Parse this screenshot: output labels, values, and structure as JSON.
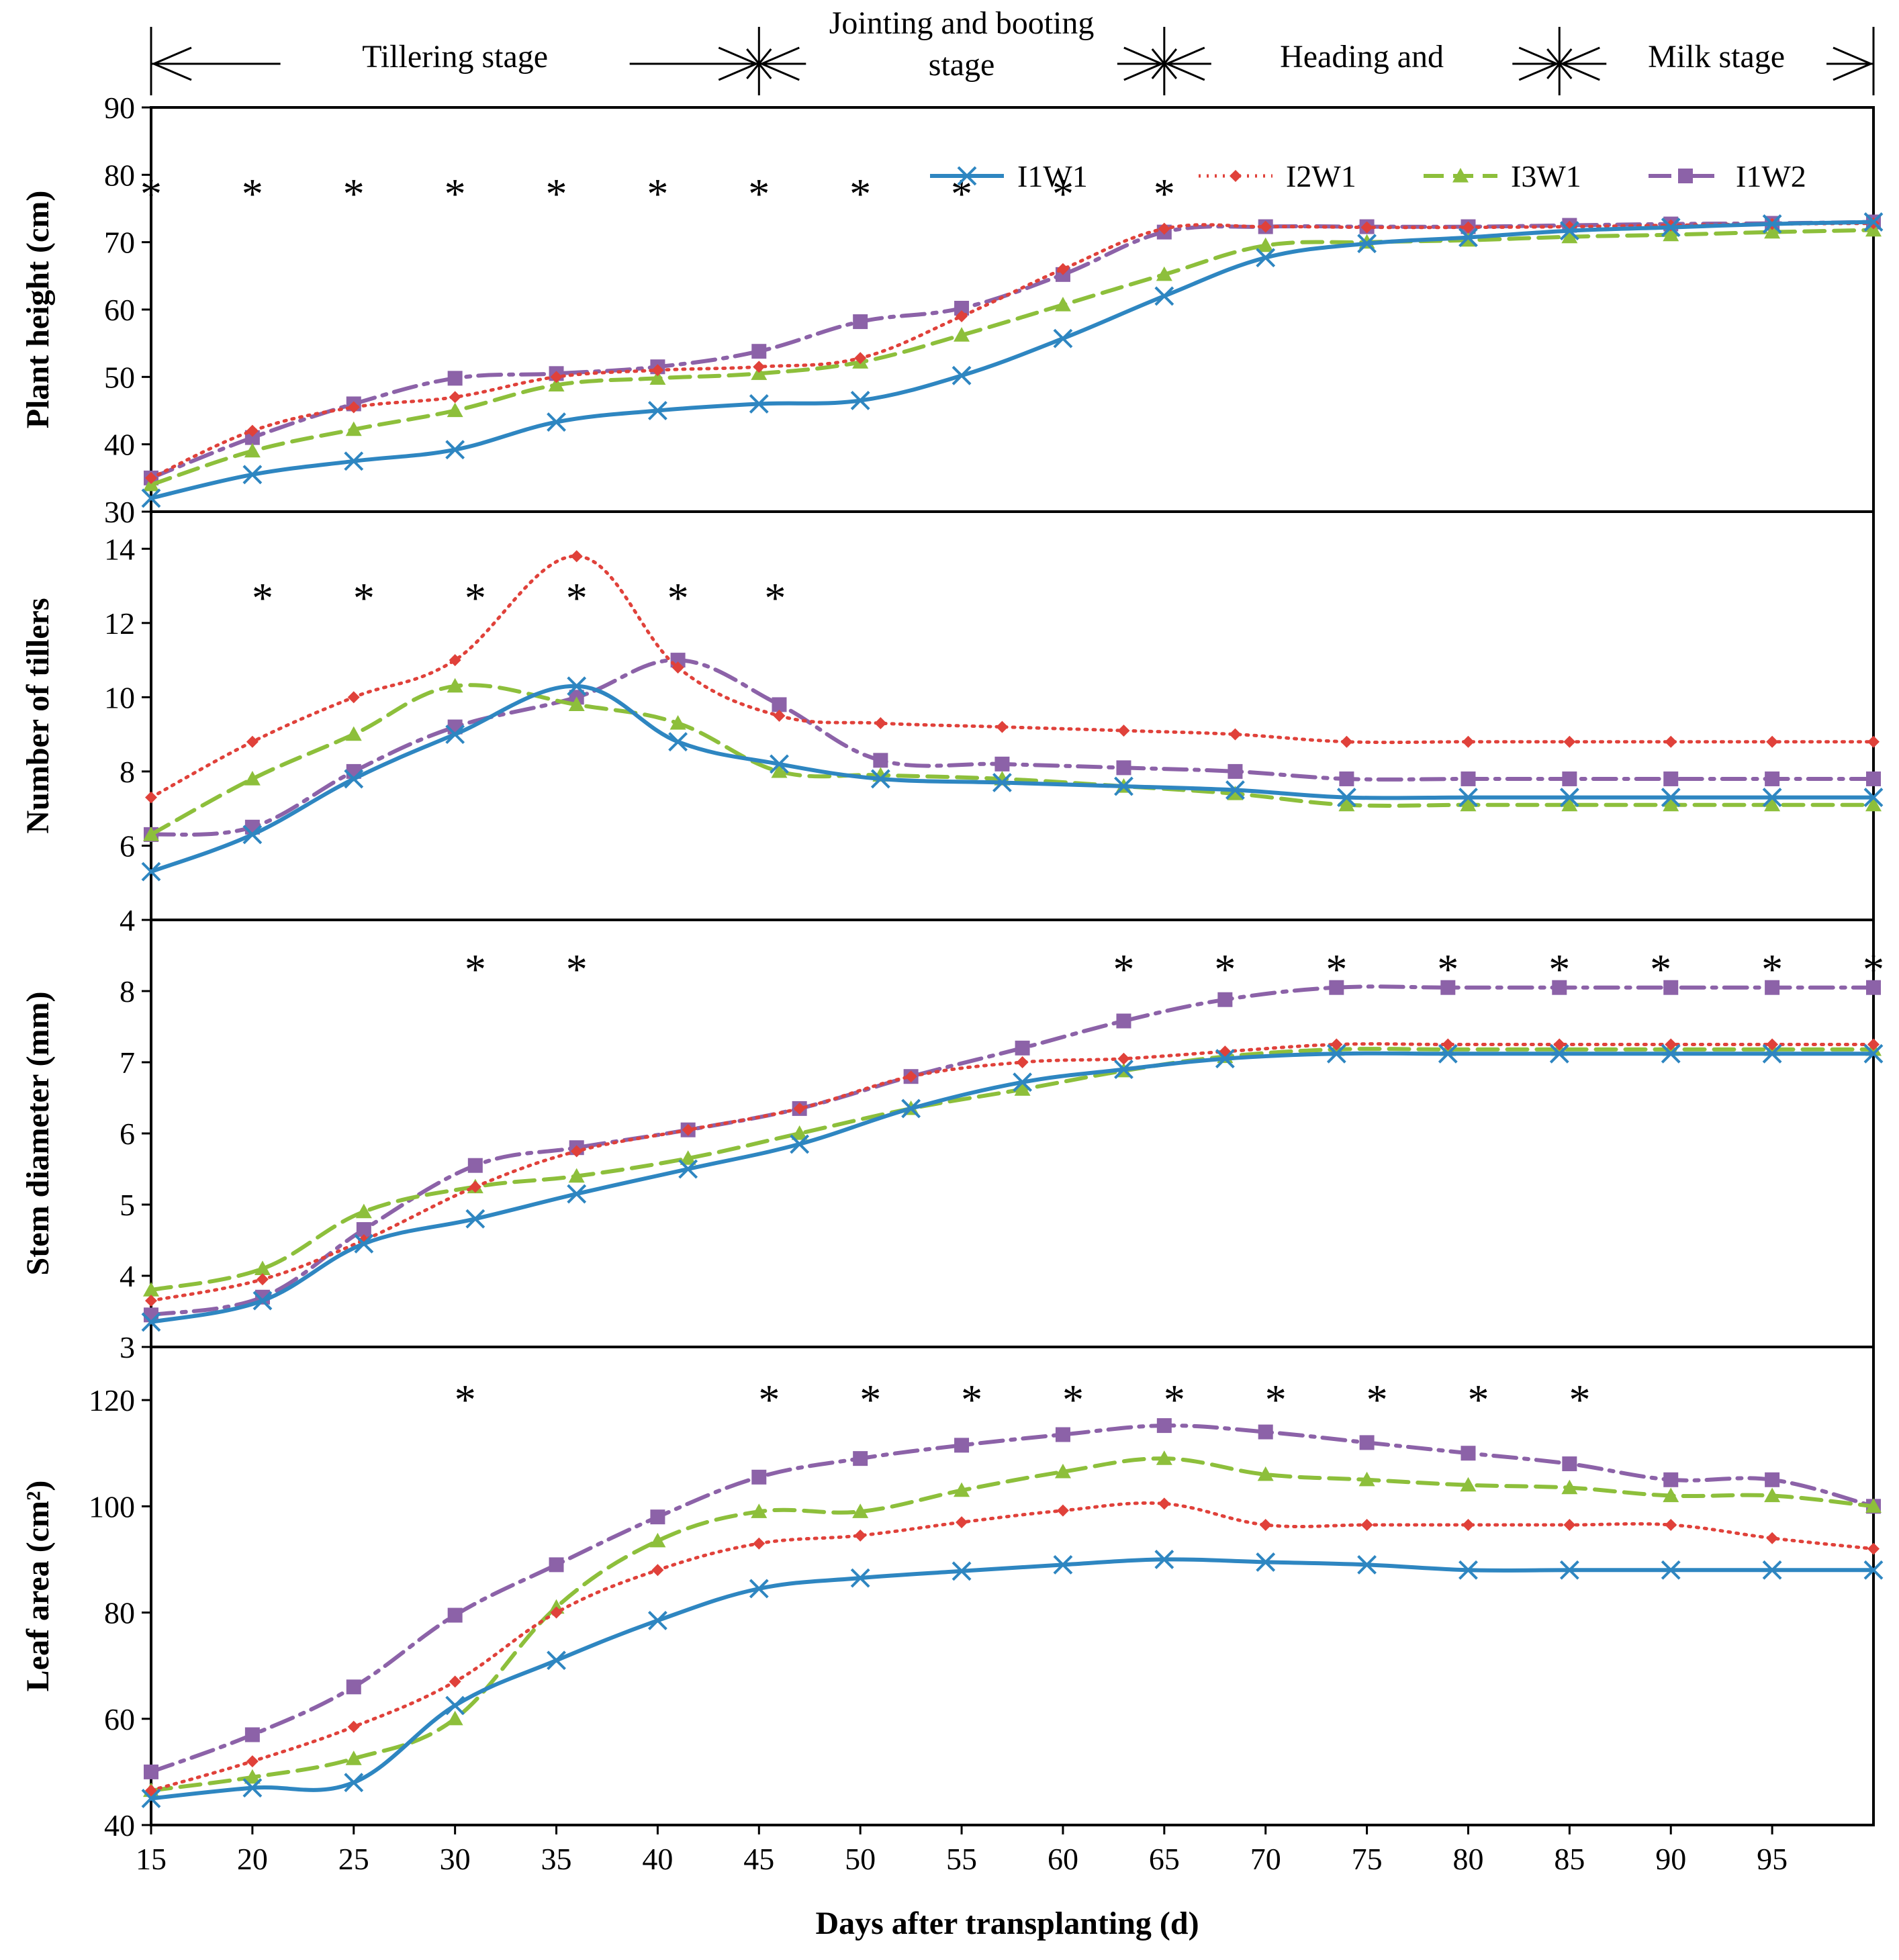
{
  "colors": {
    "I1W1": "#2E86C1",
    "I2W1": "#E0413A",
    "I3W1": "#8DBF3B",
    "I1W2": "#8C62A8",
    "axis": "#000000"
  },
  "stages": [
    {
      "label": "Tillering  stage",
      "from": 15,
      "to": 45
    },
    {
      "label": "Jointing and booting\nstage",
      "from": 45,
      "to": 65
    },
    {
      "label": "Heading and",
      "from": 65,
      "to": 84.5
    },
    {
      "label": "Milk stage",
      "from": 84.5,
      "to": 100
    }
  ],
  "legend": [
    "I1W1",
    "I2W1",
    "I3W1",
    "I1W2"
  ],
  "chart_data": {
    "type": "line",
    "xlabel": "Days  after  transplanting (d)",
    "x_ticks": [
      15,
      20,
      25,
      30,
      35,
      40,
      45,
      50,
      55,
      60,
      65,
      70,
      75,
      80,
      85,
      90,
      95
    ],
    "xlim": [
      15,
      100
    ],
    "grid": false,
    "legend_position": "top-right",
    "panels": [
      {
        "ylabel": "Plant height (cm)",
        "ylim": [
          30,
          90
        ],
        "y_ticks": [
          30,
          40,
          50,
          60,
          70,
          80,
          90
        ],
        "asterisks": [
          15,
          20,
          25,
          30,
          35,
          40,
          45,
          50,
          55,
          60,
          65
        ],
        "series": [
          {
            "name": "I1W1",
            "x": [
              15,
              20,
              25,
              30,
              35,
              40,
              45,
              50,
              55,
              60,
              65,
              70,
              75,
              80,
              85,
              90,
              95,
              100
            ],
            "values": [
              32,
              35.5,
              37.5,
              39.2,
              43.3,
              45,
              46,
              46.5,
              50.2,
              55.7,
              62,
              67.7,
              69.8,
              70.7,
              71.7,
              72.2,
              72.7,
              73
            ]
          },
          {
            "name": "I2W1",
            "x": [
              15,
              20,
              25,
              30,
              35,
              40,
              45,
              50,
              55,
              60,
              65,
              70,
              75,
              80,
              85,
              90,
              95,
              100
            ],
            "values": [
              35,
              42,
              45.5,
              47,
              50,
              51,
              51.5,
              52.8,
              59,
              66,
              72,
              72.3,
              72.2,
              72.2,
              72.3,
              72.5,
              72.7,
              72.8
            ]
          },
          {
            "name": "I3W1",
            "x": [
              15,
              20,
              25,
              30,
              35,
              40,
              45,
              50,
              55,
              60,
              65,
              70,
              75,
              80,
              85,
              90,
              95,
              100
            ],
            "values": [
              34,
              39,
              42.2,
              45,
              48.8,
              49.8,
              50.5,
              52.2,
              56.2,
              60.7,
              65.2,
              69.5,
              70,
              70.3,
              70.8,
              71.1,
              71.5,
              71.8
            ]
          },
          {
            "name": "I1W2",
            "x": [
              15,
              20,
              25,
              30,
              35,
              40,
              45,
              50,
              55,
              60,
              65,
              70,
              75,
              80,
              85,
              90,
              95,
              100
            ],
            "values": [
              35,
              41,
              46,
              49.8,
              50.5,
              51.5,
              53.8,
              58.2,
              60.2,
              65.2,
              71.5,
              72.3,
              72.3,
              72.3,
              72.5,
              72.7,
              72.8,
              73
            ]
          }
        ]
      },
      {
        "ylabel": "Number of tillers",
        "ylim": [
          4,
          15
        ],
        "y_ticks": [
          4,
          6,
          8,
          10,
          12,
          14
        ],
        "asterisks": [
          20.5,
          25.5,
          31,
          36,
          41,
          45.8
        ],
        "series": [
          {
            "name": "I1W1",
            "x": [
              15,
              20,
              25,
              30,
              36,
              41,
              46,
              51,
              57,
              63,
              68.5,
              74,
              80,
              85,
              90,
              95,
              100
            ],
            "values": [
              5.3,
              6.3,
              7.8,
              9,
              10.3,
              8.8,
              8.2,
              7.8,
              7.7,
              7.6,
              7.5,
              7.3,
              7.3,
              7.3,
              7.3,
              7.3,
              7.3
            ]
          },
          {
            "name": "I2W1",
            "x": [
              15,
              20,
              25,
              30,
              36,
              41,
              46,
              51,
              57,
              63,
              68.5,
              74,
              80,
              85,
              90,
              95,
              100
            ],
            "values": [
              7.3,
              8.8,
              10,
              11,
              13.8,
              10.8,
              9.5,
              9.3,
              9.2,
              9.1,
              9,
              8.8,
              8.8,
              8.8,
              8.8,
              8.8,
              8.8
            ]
          },
          {
            "name": "I3W1",
            "x": [
              15,
              20,
              25,
              30,
              36,
              41,
              46,
              51,
              57,
              63,
              68.5,
              74,
              80,
              85,
              90,
              95,
              100
            ],
            "values": [
              6.3,
              7.8,
              9,
              10.3,
              9.8,
              9.3,
              8,
              7.9,
              7.8,
              7.6,
              7.4,
              7.1,
              7.1,
              7.1,
              7.1,
              7.1,
              7.1
            ]
          },
          {
            "name": "I1W2",
            "x": [
              15,
              20,
              25,
              30,
              36,
              41,
              46,
              51,
              57,
              63,
              68.5,
              74,
              80,
              85,
              90,
              95,
              100
            ],
            "values": [
              6.3,
              6.5,
              8,
              9.2,
              10,
              11,
              9.8,
              8.3,
              8.2,
              8.1,
              8,
              7.8,
              7.8,
              7.8,
              7.8,
              7.8,
              7.8
            ]
          }
        ]
      },
      {
        "ylabel": "Stem diameter (mm)",
        "ylim": [
          3,
          9
        ],
        "y_ticks": [
          3,
          4,
          5,
          6,
          7,
          8
        ],
        "asterisks": [
          31,
          36,
          63,
          68,
          73.5,
          79,
          84.5,
          89.5,
          95,
          100
        ],
        "series": [
          {
            "name": "I1W1",
            "x": [
              15,
              20.5,
              25.5,
              31,
              36,
              41.5,
              47,
              52.5,
              58,
              63,
              68,
              73.5,
              79,
              84.5,
              90,
              95,
              100
            ],
            "values": [
              3.35,
              3.65,
              4.45,
              4.8,
              5.15,
              5.5,
              5.85,
              6.35,
              6.72,
              6.9,
              7.05,
              7.12,
              7.12,
              7.12,
              7.12,
              7.12,
              7.12
            ]
          },
          {
            "name": "I2W1",
            "x": [
              15,
              20.5,
              25.5,
              31,
              36,
              41.5,
              47,
              52.5,
              58,
              63,
              68,
              73.5,
              79,
              84.5,
              90,
              95,
              100
            ],
            "values": [
              3.65,
              3.95,
              4.5,
              5.25,
              5.75,
              6.05,
              6.35,
              6.8,
              7,
              7.05,
              7.15,
              7.25,
              7.25,
              7.25,
              7.25,
              7.25,
              7.25
            ]
          },
          {
            "name": "I3W1",
            "x": [
              15,
              20.5,
              25.5,
              31,
              36,
              41.5,
              47,
              52.5,
              58,
              63,
              68,
              73.5,
              79,
              84.5,
              90,
              95,
              100
            ],
            "values": [
              3.8,
              4.1,
              4.9,
              5.25,
              5.4,
              5.65,
              6,
              6.35,
              6.62,
              6.88,
              7.08,
              7.18,
              7.18,
              7.18,
              7.18,
              7.18,
              7.18
            ]
          },
          {
            "name": "I1W2",
            "x": [
              15,
              20.5,
              25.5,
              31,
              36,
              41.5,
              47,
              52.5,
              58,
              63,
              68,
              73.5,
              79,
              84.5,
              90,
              95,
              100
            ],
            "values": [
              3.45,
              3.7,
              4.65,
              5.55,
              5.8,
              6.05,
              6.35,
              6.8,
              7.2,
              7.58,
              7.88,
              8.05,
              8.05,
              8.05,
              8.05,
              8.05,
              8.05
            ]
          }
        ]
      },
      {
        "ylabel": "Leaf area  (cm²)",
        "ylim": [
          40,
          130
        ],
        "y_ticks": [
          40,
          60,
          80,
          100,
          120
        ],
        "asterisks": [
          30.5,
          45.5,
          50.5,
          55.5,
          60.5,
          65.5,
          70.5,
          75.5,
          80.5,
          85.5
        ],
        "series": [
          {
            "name": "I1W1",
            "x": [
              15,
              20,
              25,
              30,
              35,
              40,
              45,
              50,
              55,
              60,
              65,
              70,
              75,
              80,
              85,
              90,
              95,
              100
            ],
            "values": [
              45,
              47,
              48,
              62.5,
              71,
              78.5,
              84.5,
              86.5,
              87.8,
              89,
              90,
              89.5,
              89,
              88,
              88,
              88,
              88,
              88
            ]
          },
          {
            "name": "I2W1",
            "x": [
              15,
              20,
              25,
              30,
              35,
              40,
              45,
              50,
              55,
              60,
              65,
              70,
              75,
              80,
              85,
              90,
              95,
              100
            ],
            "values": [
              46.5,
              52,
              58.5,
              67,
              80,
              88,
              93,
              94.5,
              97,
              99.2,
              100.5,
              96.5,
              96.5,
              96.5,
              96.5,
              96.5,
              94,
              92
            ]
          },
          {
            "name": "I3W1",
            "x": [
              15,
              20,
              25,
              30,
              35,
              40,
              45,
              50,
              55,
              60,
              65,
              70,
              75,
              80,
              85,
              90,
              95,
              100
            ],
            "values": [
              46.5,
              49,
              52.5,
              60,
              81,
              93.5,
              99,
              99,
              103,
              106.5,
              109,
              106,
              105,
              104,
              103.5,
              102,
              102,
              100
            ]
          },
          {
            "name": "I1W2",
            "x": [
              15,
              20,
              25,
              30,
              35,
              40,
              45,
              50,
              55,
              60,
              65,
              70,
              75,
              80,
              85,
              90,
              95,
              100
            ],
            "values": [
              50,
              57,
              66,
              79.5,
              89,
              98,
              105.5,
              109,
              111.5,
              113.5,
              115.2,
              114,
              112,
              110,
              108,
              105,
              105,
              100
            ]
          }
        ]
      }
    ]
  }
}
